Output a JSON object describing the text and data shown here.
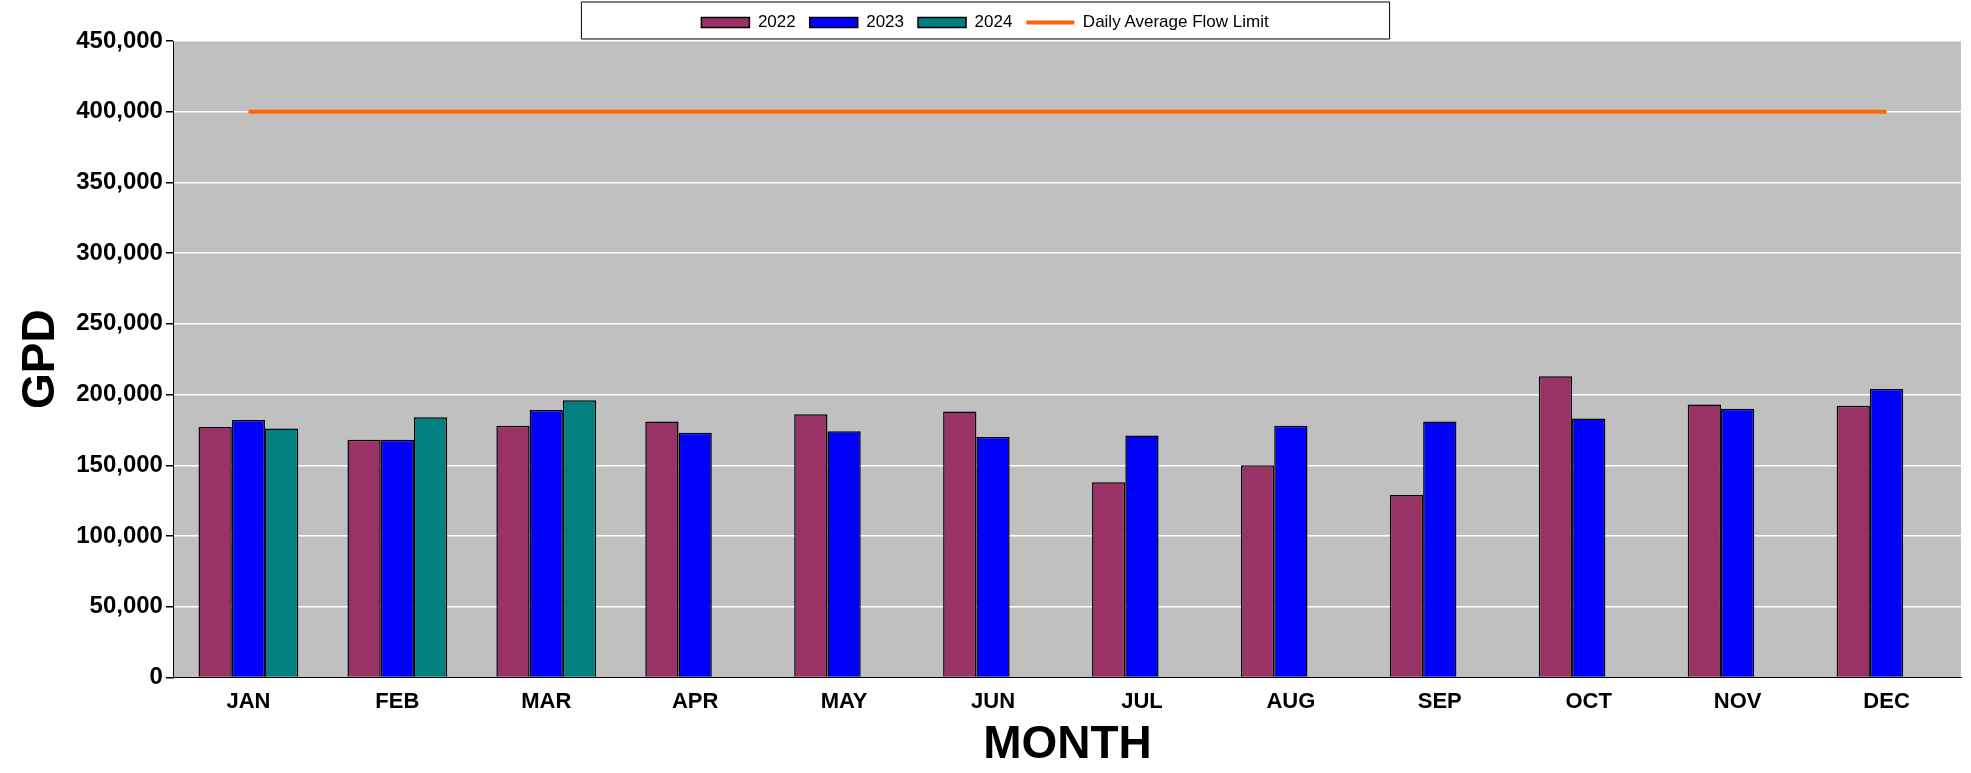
{
  "chart_data": {
    "type": "bar",
    "xlabel": "MONTH",
    "ylabel": "GPD",
    "categories": [
      "JAN",
      "FEB",
      "MAR",
      "APR",
      "MAY",
      "JUN",
      "JUL",
      "AUG",
      "SEP",
      "OCT",
      "NOV",
      "DEC"
    ],
    "series": [
      {
        "name": "2022",
        "color": "#993366",
        "values": [
          177000,
          168000,
          178000,
          181000,
          186000,
          188000,
          138000,
          150000,
          129000,
          213000,
          193000,
          192000
        ]
      },
      {
        "name": "2023",
        "color": "#0000ff",
        "values": [
          182000,
          168000,
          189000,
          173000,
          174000,
          170000,
          171000,
          178000,
          181000,
          183000,
          190000,
          204000
        ]
      },
      {
        "name": "2024",
        "color": "#008080",
        "values": [
          176000,
          184000,
          196000,
          null,
          null,
          null,
          null,
          null,
          null,
          null,
          null,
          null
        ]
      },
      {
        "name": "Daily Average Flow Limit",
        "type": "line",
        "color": "#ff6600",
        "values": [
          400000,
          400000,
          400000,
          400000,
          400000,
          400000,
          400000,
          400000,
          400000,
          400000,
          400000,
          400000
        ]
      }
    ],
    "ylim": [
      0,
      450000
    ],
    "yticks": [
      0,
      {
        "value": 50000,
        "label": "50,000"
      },
      {
        "value": 100000,
        "label": "100,000"
      },
      {
        "value": 150000,
        "label": "150,000"
      },
      {
        "value": 200000,
        "label": "200,000"
      },
      {
        "value": 250000,
        "label": "250,000"
      },
      {
        "value": 300000,
        "label": "300,000"
      },
      {
        "value": 350000,
        "label": "350,000"
      },
      {
        "value": 400000,
        "label": "400,000"
      },
      {
        "value": 450000,
        "label": "450,000"
      }
    ],
    "grid": "y",
    "legend": "top"
  }
}
